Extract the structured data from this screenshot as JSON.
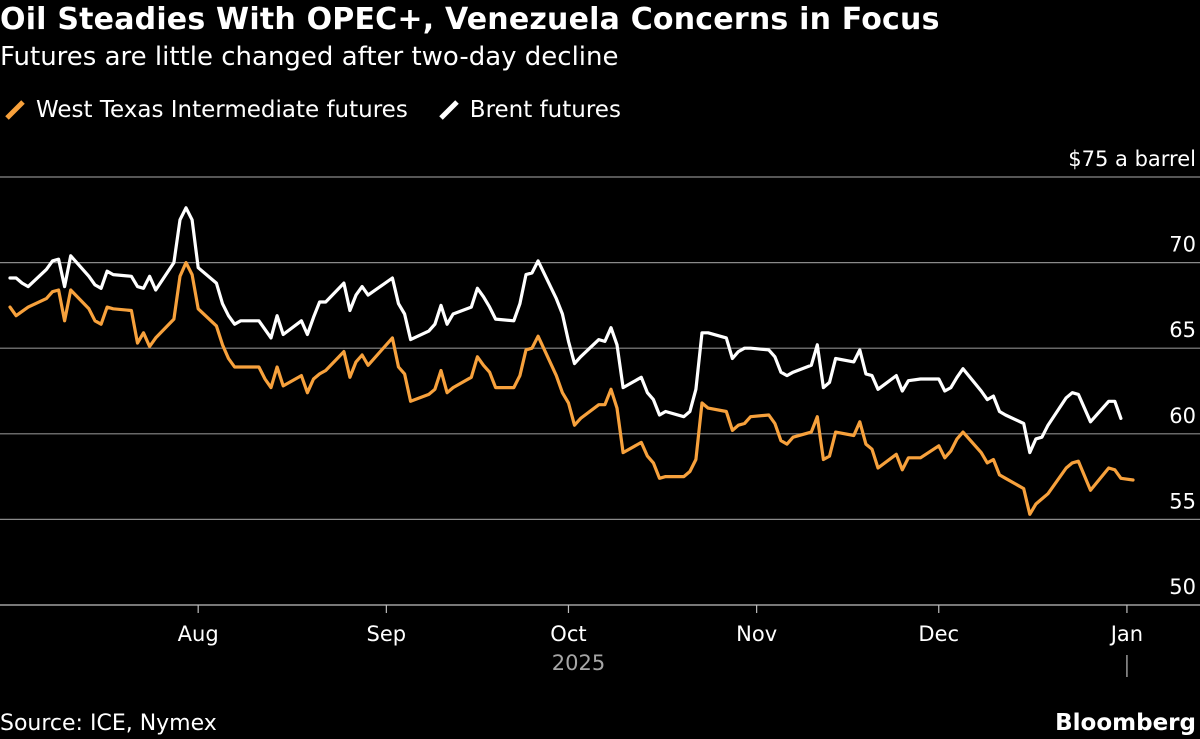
{
  "header": {
    "title": "Oil Steadies With OPEC+, Venezuela Concerns in Focus",
    "subtitle": "Futures are little changed after two-day decline"
  },
  "footer": {
    "source": "Source: ICE, Nymex",
    "brand": "Bloomberg"
  },
  "colors": {
    "background": "#000000",
    "wti": "#f7a13c",
    "brent": "#ffffff",
    "grid": "#8a8a8a",
    "axis_text": "#ffffff",
    "year_text": "#a6a6a6"
  },
  "chart_data": {
    "type": "line",
    "title": "Oil Steadies With OPEC+, Venezuela Concerns in Focus",
    "subtitle": "Futures are little changed after two-day decline",
    "ylabel": "$75 a barrel",
    "ylim": [
      50,
      75
    ],
    "yticks": [
      50,
      55,
      60,
      65,
      70,
      75
    ],
    "ytick_labels": [
      "50",
      "55",
      "60",
      "65",
      "70",
      "$75 a barrel"
    ],
    "xlim": [
      "2025-07-01",
      "2026-01-02"
    ],
    "xticks": [
      {
        "date": "2025-08-01",
        "label": "Aug"
      },
      {
        "date": "2025-09-01",
        "label": "Sep"
      },
      {
        "date": "2025-10-01",
        "label": "Oct"
      },
      {
        "date": "2025-11-01",
        "label": "Nov"
      },
      {
        "date": "2025-12-01",
        "label": "Dec"
      },
      {
        "date": "2026-01-01",
        "label": "Jan"
      }
    ],
    "year_label": "2025",
    "grid": true,
    "legend_position": "top-left",
    "series": [
      {
        "name": "West Texas Intermediate futures",
        "color": "#f7a13c",
        "points": [
          [
            "2025-07-01",
            67.4
          ],
          [
            "2025-07-02",
            66.9
          ],
          [
            "2025-07-04",
            67.4
          ],
          [
            "2025-07-07",
            67.9
          ],
          [
            "2025-07-08",
            68.3
          ],
          [
            "2025-07-09",
            68.4
          ],
          [
            "2025-07-10",
            66.6
          ],
          [
            "2025-07-11",
            68.4
          ],
          [
            "2025-07-14",
            67.3
          ],
          [
            "2025-07-15",
            66.6
          ],
          [
            "2025-07-16",
            66.4
          ],
          [
            "2025-07-17",
            67.4
          ],
          [
            "2025-07-18",
            67.3
          ],
          [
            "2025-07-21",
            67.2
          ],
          [
            "2025-07-22",
            65.3
          ],
          [
            "2025-07-23",
            65.9
          ],
          [
            "2025-07-24",
            65.1
          ],
          [
            "2025-07-25",
            65.6
          ],
          [
            "2025-07-28",
            66.7
          ],
          [
            "2025-07-29",
            69.2
          ],
          [
            "2025-07-30",
            70.0
          ],
          [
            "2025-07-31",
            69.3
          ],
          [
            "2025-08-01",
            67.3
          ],
          [
            "2025-08-04",
            66.3
          ],
          [
            "2025-08-05",
            65.2
          ],
          [
            "2025-08-06",
            64.4
          ],
          [
            "2025-08-07",
            63.9
          ],
          [
            "2025-08-08",
            63.9
          ],
          [
            "2025-08-11",
            63.9
          ],
          [
            "2025-08-12",
            63.2
          ],
          [
            "2025-08-13",
            62.7
          ],
          [
            "2025-08-14",
            63.9
          ],
          [
            "2025-08-15",
            62.8
          ],
          [
            "2025-08-18",
            63.4
          ],
          [
            "2025-08-19",
            62.4
          ],
          [
            "2025-08-20",
            63.2
          ],
          [
            "2025-08-21",
            63.5
          ],
          [
            "2025-08-22",
            63.7
          ],
          [
            "2025-08-25",
            64.8
          ],
          [
            "2025-08-26",
            63.3
          ],
          [
            "2025-08-27",
            64.2
          ],
          [
            "2025-08-28",
            64.6
          ],
          [
            "2025-08-29",
            64.0
          ],
          [
            "2025-09-02",
            65.6
          ],
          [
            "2025-09-03",
            63.9
          ],
          [
            "2025-09-04",
            63.5
          ],
          [
            "2025-09-05",
            61.9
          ],
          [
            "2025-09-08",
            62.3
          ],
          [
            "2025-09-09",
            62.6
          ],
          [
            "2025-09-10",
            63.7
          ],
          [
            "2025-09-11",
            62.4
          ],
          [
            "2025-09-12",
            62.7
          ],
          [
            "2025-09-15",
            63.3
          ],
          [
            "2025-09-16",
            64.5
          ],
          [
            "2025-09-17",
            64.0
          ],
          [
            "2025-09-18",
            63.6
          ],
          [
            "2025-09-19",
            62.7
          ],
          [
            "2025-09-22",
            62.7
          ],
          [
            "2025-09-23",
            63.4
          ],
          [
            "2025-09-24",
            64.9
          ],
          [
            "2025-09-25",
            65.0
          ],
          [
            "2025-09-26",
            65.7
          ],
          [
            "2025-09-29",
            63.4
          ],
          [
            "2025-09-30",
            62.4
          ],
          [
            "2025-10-01",
            61.8
          ],
          [
            "2025-10-02",
            60.5
          ],
          [
            "2025-10-03",
            60.9
          ],
          [
            "2025-10-06",
            61.7
          ],
          [
            "2025-10-07",
            61.7
          ],
          [
            "2025-10-08",
            62.6
          ],
          [
            "2025-10-09",
            61.5
          ],
          [
            "2025-10-10",
            58.9
          ],
          [
            "2025-10-13",
            59.5
          ],
          [
            "2025-10-14",
            58.7
          ],
          [
            "2025-10-15",
            58.3
          ],
          [
            "2025-10-16",
            57.4
          ],
          [
            "2025-10-17",
            57.5
          ],
          [
            "2025-10-20",
            57.5
          ],
          [
            "2025-10-21",
            57.8
          ],
          [
            "2025-10-22",
            58.5
          ],
          [
            "2025-10-23",
            61.8
          ],
          [
            "2025-10-24",
            61.5
          ],
          [
            "2025-10-27",
            61.3
          ],
          [
            "2025-10-28",
            60.2
          ],
          [
            "2025-10-29",
            60.5
          ],
          [
            "2025-10-30",
            60.6
          ],
          [
            "2025-10-31",
            61.0
          ],
          [
            "2025-11-03",
            61.1
          ],
          [
            "2025-11-04",
            60.6
          ],
          [
            "2025-11-05",
            59.6
          ],
          [
            "2025-11-06",
            59.4
          ],
          [
            "2025-11-07",
            59.8
          ],
          [
            "2025-11-10",
            60.1
          ],
          [
            "2025-11-11",
            61.0
          ],
          [
            "2025-11-12",
            58.5
          ],
          [
            "2025-11-13",
            58.7
          ],
          [
            "2025-11-14",
            60.1
          ],
          [
            "2025-11-17",
            59.9
          ],
          [
            "2025-11-18",
            60.7
          ],
          [
            "2025-11-19",
            59.4
          ],
          [
            "2025-11-20",
            59.1
          ],
          [
            "2025-11-21",
            58.0
          ],
          [
            "2025-11-24",
            58.8
          ],
          [
            "2025-11-25",
            57.9
          ],
          [
            "2025-11-26",
            58.6
          ],
          [
            "2025-11-28",
            58.6
          ],
          [
            "2025-12-01",
            59.3
          ],
          [
            "2025-12-02",
            58.6
          ],
          [
            "2025-12-03",
            59.0
          ],
          [
            "2025-12-04",
            59.7
          ],
          [
            "2025-12-05",
            60.1
          ],
          [
            "2025-12-08",
            58.9
          ],
          [
            "2025-12-09",
            58.3
          ],
          [
            "2025-12-10",
            58.5
          ],
          [
            "2025-12-11",
            57.6
          ],
          [
            "2025-12-12",
            57.4
          ],
          [
            "2025-12-15",
            56.8
          ],
          [
            "2025-12-16",
            55.3
          ],
          [
            "2025-12-17",
            55.9
          ],
          [
            "2025-12-18",
            56.2
          ],
          [
            "2025-12-19",
            56.5
          ],
          [
            "2025-12-22",
            58.0
          ],
          [
            "2025-12-23",
            58.3
          ],
          [
            "2025-12-24",
            58.4
          ],
          [
            "2025-12-26",
            56.7
          ],
          [
            "2025-12-29",
            58.0
          ],
          [
            "2025-12-30",
            57.9
          ],
          [
            "2025-12-31",
            57.4
          ],
          [
            "2026-01-02",
            57.3
          ]
        ]
      },
      {
        "name": "Brent futures",
        "color": "#ffffff",
        "points": [
          [
            "2025-07-01",
            69.1
          ],
          [
            "2025-07-02",
            69.1
          ],
          [
            "2025-07-03",
            68.8
          ],
          [
            "2025-07-04",
            68.6
          ],
          [
            "2025-07-07",
            69.6
          ],
          [
            "2025-07-08",
            70.1
          ],
          [
            "2025-07-09",
            70.2
          ],
          [
            "2025-07-10",
            68.6
          ],
          [
            "2025-07-11",
            70.4
          ],
          [
            "2025-07-14",
            69.2
          ],
          [
            "2025-07-15",
            68.7
          ],
          [
            "2025-07-16",
            68.5
          ],
          [
            "2025-07-17",
            69.5
          ],
          [
            "2025-07-18",
            69.3
          ],
          [
            "2025-07-21",
            69.2
          ],
          [
            "2025-07-22",
            68.6
          ],
          [
            "2025-07-23",
            68.5
          ],
          [
            "2025-07-24",
            69.2
          ],
          [
            "2025-07-25",
            68.4
          ],
          [
            "2025-07-28",
            70.0
          ],
          [
            "2025-07-29",
            72.5
          ],
          [
            "2025-07-30",
            73.2
          ],
          [
            "2025-07-31",
            72.5
          ],
          [
            "2025-08-01",
            69.7
          ],
          [
            "2025-08-04",
            68.8
          ],
          [
            "2025-08-05",
            67.6
          ],
          [
            "2025-08-06",
            66.9
          ],
          [
            "2025-08-07",
            66.4
          ],
          [
            "2025-08-08",
            66.6
          ],
          [
            "2025-08-11",
            66.6
          ],
          [
            "2025-08-12",
            66.1
          ],
          [
            "2025-08-13",
            65.6
          ],
          [
            "2025-08-14",
            66.9
          ],
          [
            "2025-08-15",
            65.8
          ],
          [
            "2025-08-18",
            66.6
          ],
          [
            "2025-08-19",
            65.8
          ],
          [
            "2025-08-20",
            66.8
          ],
          [
            "2025-08-21",
            67.7
          ],
          [
            "2025-08-22",
            67.7
          ],
          [
            "2025-08-25",
            68.8
          ],
          [
            "2025-08-26",
            67.2
          ],
          [
            "2025-08-27",
            68.1
          ],
          [
            "2025-08-28",
            68.6
          ],
          [
            "2025-08-29",
            68.1
          ],
          [
            "2025-09-02",
            69.1
          ],
          [
            "2025-09-03",
            67.6
          ],
          [
            "2025-09-04",
            67.0
          ],
          [
            "2025-09-05",
            65.5
          ],
          [
            "2025-09-08",
            66.0
          ],
          [
            "2025-09-09",
            66.4
          ],
          [
            "2025-09-10",
            67.5
          ],
          [
            "2025-09-11",
            66.4
          ],
          [
            "2025-09-12",
            67.0
          ],
          [
            "2025-09-15",
            67.4
          ],
          [
            "2025-09-16",
            68.5
          ],
          [
            "2025-09-17",
            68.0
          ],
          [
            "2025-09-18",
            67.4
          ],
          [
            "2025-09-19",
            66.7
          ],
          [
            "2025-09-22",
            66.6
          ],
          [
            "2025-09-23",
            67.6
          ],
          [
            "2025-09-24",
            69.3
          ],
          [
            "2025-09-25",
            69.4
          ],
          [
            "2025-09-26",
            70.1
          ],
          [
            "2025-09-29",
            67.9
          ],
          [
            "2025-09-30",
            67.0
          ],
          [
            "2025-10-01",
            65.4
          ],
          [
            "2025-10-02",
            64.1
          ],
          [
            "2025-10-03",
            64.5
          ],
          [
            "2025-10-06",
            65.5
          ],
          [
            "2025-10-07",
            65.4
          ],
          [
            "2025-10-08",
            66.2
          ],
          [
            "2025-10-09",
            65.2
          ],
          [
            "2025-10-10",
            62.7
          ],
          [
            "2025-10-13",
            63.3
          ],
          [
            "2025-10-14",
            62.4
          ],
          [
            "2025-10-15",
            62.0
          ],
          [
            "2025-10-16",
            61.1
          ],
          [
            "2025-10-17",
            61.3
          ],
          [
            "2025-10-20",
            61.0
          ],
          [
            "2025-10-21",
            61.3
          ],
          [
            "2025-10-22",
            62.6
          ],
          [
            "2025-10-23",
            65.9
          ],
          [
            "2025-10-24",
            65.9
          ],
          [
            "2025-10-27",
            65.6
          ],
          [
            "2025-10-28",
            64.4
          ],
          [
            "2025-10-29",
            64.8
          ],
          [
            "2025-10-30",
            65.0
          ],
          [
            "2025-10-31",
            65.0
          ],
          [
            "2025-11-03",
            64.9
          ],
          [
            "2025-11-04",
            64.5
          ],
          [
            "2025-11-05",
            63.6
          ],
          [
            "2025-11-06",
            63.4
          ],
          [
            "2025-11-07",
            63.6
          ],
          [
            "2025-11-10",
            64.0
          ],
          [
            "2025-11-11",
            65.2
          ],
          [
            "2025-11-12",
            62.7
          ],
          [
            "2025-11-13",
            63.0
          ],
          [
            "2025-11-14",
            64.4
          ],
          [
            "2025-11-17",
            64.2
          ],
          [
            "2025-11-18",
            64.9
          ],
          [
            "2025-11-19",
            63.5
          ],
          [
            "2025-11-20",
            63.4
          ],
          [
            "2025-11-21",
            62.6
          ],
          [
            "2025-11-24",
            63.4
          ],
          [
            "2025-11-25",
            62.5
          ],
          [
            "2025-11-26",
            63.1
          ],
          [
            "2025-11-28",
            63.2
          ],
          [
            "2025-12-01",
            63.2
          ],
          [
            "2025-12-02",
            62.5
          ],
          [
            "2025-12-03",
            62.7
          ],
          [
            "2025-12-04",
            63.3
          ],
          [
            "2025-12-05",
            63.8
          ],
          [
            "2025-12-08",
            62.5
          ],
          [
            "2025-12-09",
            62.0
          ],
          [
            "2025-12-10",
            62.2
          ],
          [
            "2025-12-11",
            61.3
          ],
          [
            "2025-12-12",
            61.1
          ],
          [
            "2025-12-15",
            60.6
          ],
          [
            "2025-12-16",
            58.9
          ],
          [
            "2025-12-17",
            59.7
          ],
          [
            "2025-12-18",
            59.8
          ],
          [
            "2025-12-19",
            60.5
          ],
          [
            "2025-12-22",
            62.1
          ],
          [
            "2025-12-23",
            62.4
          ],
          [
            "2025-12-24",
            62.3
          ],
          [
            "2025-12-26",
            60.7
          ],
          [
            "2025-12-29",
            61.9
          ],
          [
            "2025-12-30",
            61.9
          ],
          [
            "2025-12-31",
            60.9
          ]
        ]
      }
    ]
  }
}
